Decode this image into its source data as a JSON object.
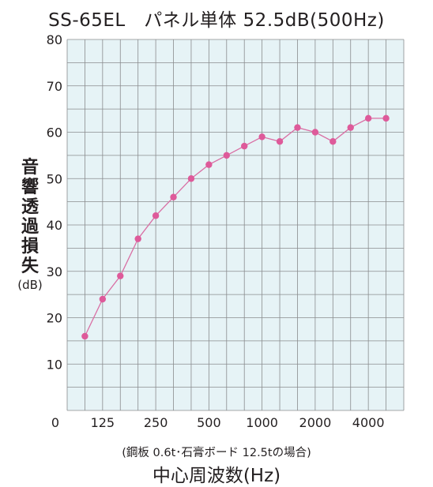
{
  "chart_data": {
    "type": "line",
    "title": "SS-65EL　パネル単体 52.5dB(500Hz)",
    "ylabel_chars": [
      "音",
      "響",
      "透",
      "過",
      "損",
      "失"
    ],
    "ylabel_unit": "(dB)",
    "xlabel": "中心周波数(Hz)",
    "note": "(鋼板 0.6t･石膏ボード 12.5tの場合)",
    "ylim": [
      0,
      80
    ],
    "yticks": [
      0,
      10,
      20,
      30,
      40,
      50,
      60,
      70,
      80
    ],
    "xtick_labels": [
      "125",
      "250",
      "500",
      "1000",
      "2000",
      "4000"
    ],
    "x_hz": [
      100,
      125,
      160,
      200,
      250,
      315,
      400,
      500,
      630,
      800,
      1000,
      1250,
      1600,
      2000,
      2500,
      3150,
      4000,
      5000
    ],
    "values": [
      16,
      24,
      29,
      37,
      42,
      46,
      50,
      53,
      55,
      57,
      59,
      58,
      61,
      60,
      58,
      61,
      63,
      63
    ],
    "grid": true,
    "colors": {
      "line": "#d96fa4",
      "marker": "#de5a9a",
      "plot_bg": "#e6f3f6",
      "grid": "#8a8c8e"
    }
  }
}
